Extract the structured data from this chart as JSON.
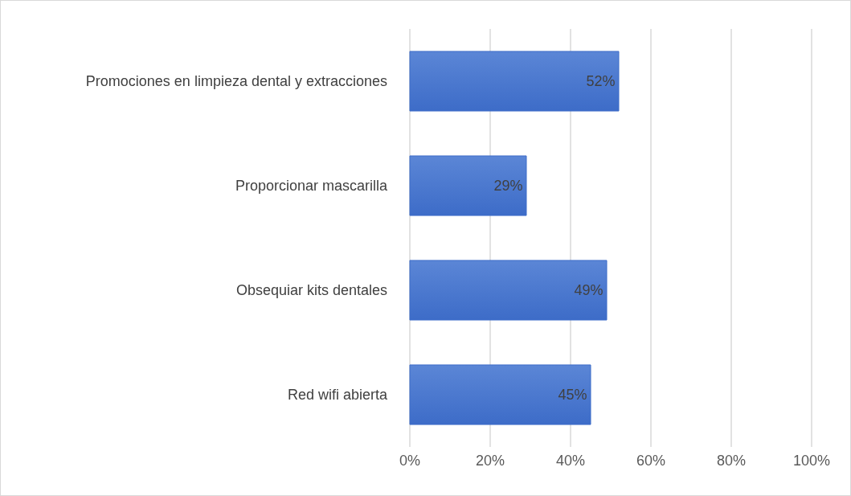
{
  "chart_data": {
    "type": "bar",
    "orientation": "horizontal",
    "categories": [
      "Promociones en limpieza dental y extracciones",
      "Proporcionar mascarilla",
      "Obsequiar kits dentales",
      "Red wifi abierta"
    ],
    "values": [
      52,
      29,
      49,
      45
    ],
    "value_labels": [
      "52%",
      "29%",
      "49%",
      "45%"
    ],
    "color": "#3d6cc8",
    "xlim": [
      0,
      100
    ],
    "xticks": [
      {
        "value": 0,
        "label": "0%"
      },
      {
        "value": 20,
        "label": "20%"
      },
      {
        "value": 40,
        "label": "40%"
      },
      {
        "value": 60,
        "label": "60%"
      },
      {
        "value": 80,
        "label": "80%"
      },
      {
        "value": 100,
        "label": "100%"
      }
    ],
    "grid": "x"
  }
}
